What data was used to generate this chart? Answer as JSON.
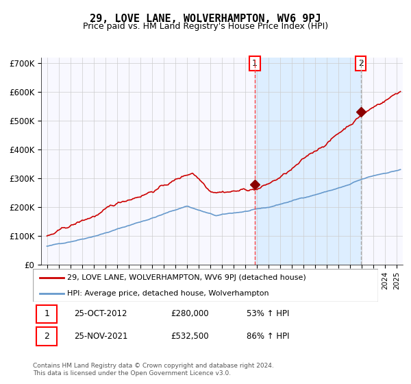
{
  "title": "29, LOVE LANE, WOLVERHAMPTON, WV6 9PJ",
  "subtitle": "Price paid vs. HM Land Registry's House Price Index (HPI)",
  "legend_line1": "29, LOVE LANE, WOLVERHAMPTON, WV6 9PJ (detached house)",
  "legend_line2": "HPI: Average price, detached house, Wolverhampton",
  "annotation1_label": "1",
  "annotation1_date": "25-OCT-2012",
  "annotation1_price": "£280,000",
  "annotation1_hpi": "53% ↑ HPI",
  "annotation2_label": "2",
  "annotation2_date": "25-NOV-2021",
  "annotation2_price": "£532,500",
  "annotation2_hpi": "86% ↑ HPI",
  "footer": "Contains HM Land Registry data © Crown copyright and database right 2024.\nThis data is licensed under the Open Government Licence v3.0.",
  "sale1_year": 2012.82,
  "sale1_value": 280000,
  "sale2_year": 2021.9,
  "sale2_value": 532500,
  "red_vline_x": 2012.82,
  "grey_vline_x": 2021.9,
  "shaded_start": 2012.82,
  "shaded_end": 2021.9,
  "ylim": [
    0,
    720000
  ],
  "xlim_start": 1994.5,
  "xlim_end": 2025.5,
  "line_color_red": "#cc0000",
  "line_color_blue": "#6699cc",
  "shaded_color": "#ddeeff",
  "bg_color": "#f8f8ff",
  "grid_color": "#cccccc",
  "vline_red_color": "#ff4444",
  "vline_grey_color": "#aaaaaa"
}
